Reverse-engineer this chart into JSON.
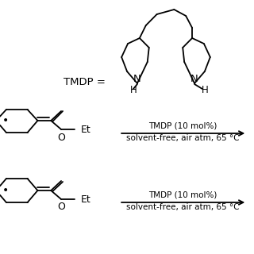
{
  "background_color": "#ffffff",
  "text_color": "#000000",
  "tmdp_label": "TMDP =",
  "reagent_line1": "TMDP (10 mol%)",
  "reagent_line2": "solvent-free, air atm, 65 °C",
  "figsize": [
    3.2,
    3.2
  ],
  "dpi": 100
}
